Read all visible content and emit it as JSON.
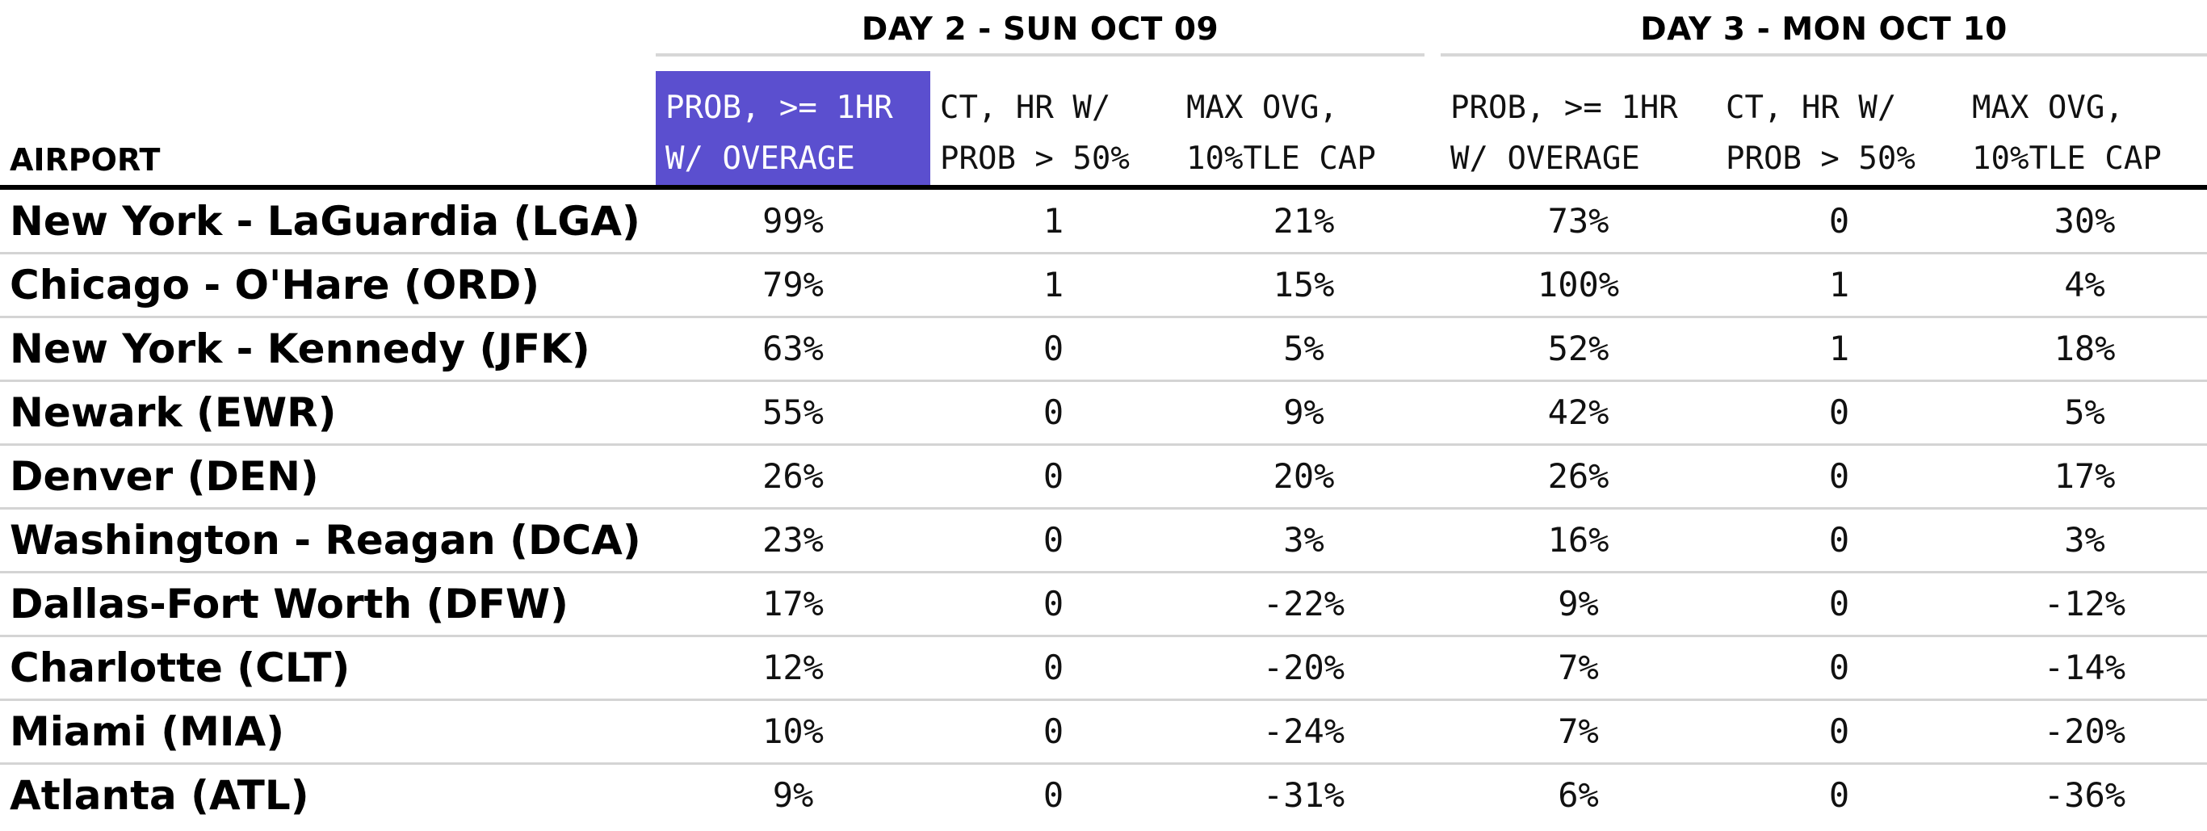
{
  "chart_data": {
    "type": "table",
    "groups": [
      {
        "title": "DAY 2 - SUN OCT 09"
      },
      {
        "title": "DAY 3 - MON OCT 10"
      }
    ],
    "columns": [
      {
        "line1": "PROB, >= 1HR",
        "line2": "W/ OVERAGE",
        "highlight": true
      },
      {
        "line1": "CT, HR W/",
        "line2": "PROB > 50%",
        "highlight": false
      },
      {
        "line1": "MAX OVG,",
        "line2": "10%TLE CAP",
        "highlight": false
      },
      {
        "line1": "PROB, >= 1HR",
        "line2": "W/ OVERAGE",
        "highlight": false
      },
      {
        "line1": "CT, HR W/",
        "line2": "PROB > 50%",
        "highlight": false
      },
      {
        "line1": "MAX OVG,",
        "line2": "10%TLE CAP",
        "highlight": false
      }
    ],
    "airport_header": "AIRPORT",
    "highlight_color": "#5b4fcf",
    "rows": [
      {
        "airport": "New York - LaGuardia (LGA)",
        "values": [
          "99%",
          "1",
          "21%",
          "73%",
          "0",
          "30%"
        ]
      },
      {
        "airport": "Chicago - O'Hare (ORD)",
        "values": [
          "79%",
          "1",
          "15%",
          "100%",
          "1",
          "4%"
        ]
      },
      {
        "airport": "New York - Kennedy (JFK)",
        "values": [
          "63%",
          "0",
          "5%",
          "52%",
          "1",
          "18%"
        ]
      },
      {
        "airport": "Newark (EWR)",
        "values": [
          "55%",
          "0",
          "9%",
          "42%",
          "0",
          "5%"
        ]
      },
      {
        "airport": "Denver (DEN)",
        "values": [
          "26%",
          "0",
          "20%",
          "26%",
          "0",
          "17%"
        ]
      },
      {
        "airport": "Washington - Reagan (DCA)",
        "values": [
          "23%",
          "0",
          "3%",
          "16%",
          "0",
          "3%"
        ]
      },
      {
        "airport": "Dallas-Fort Worth (DFW)",
        "values": [
          "17%",
          "0",
          "-22%",
          "9%",
          "0",
          "-12%"
        ]
      },
      {
        "airport": "Charlotte (CLT)",
        "values": [
          "12%",
          "0",
          "-20%",
          "7%",
          "0",
          "-14%"
        ]
      },
      {
        "airport": "Miami (MIA)",
        "values": [
          "10%",
          "0",
          "-24%",
          "7%",
          "0",
          "-20%"
        ]
      },
      {
        "airport": "Atlanta (ATL)",
        "values": [
          "9%",
          "0",
          "-31%",
          "6%",
          "0",
          "-36%"
        ]
      }
    ]
  }
}
